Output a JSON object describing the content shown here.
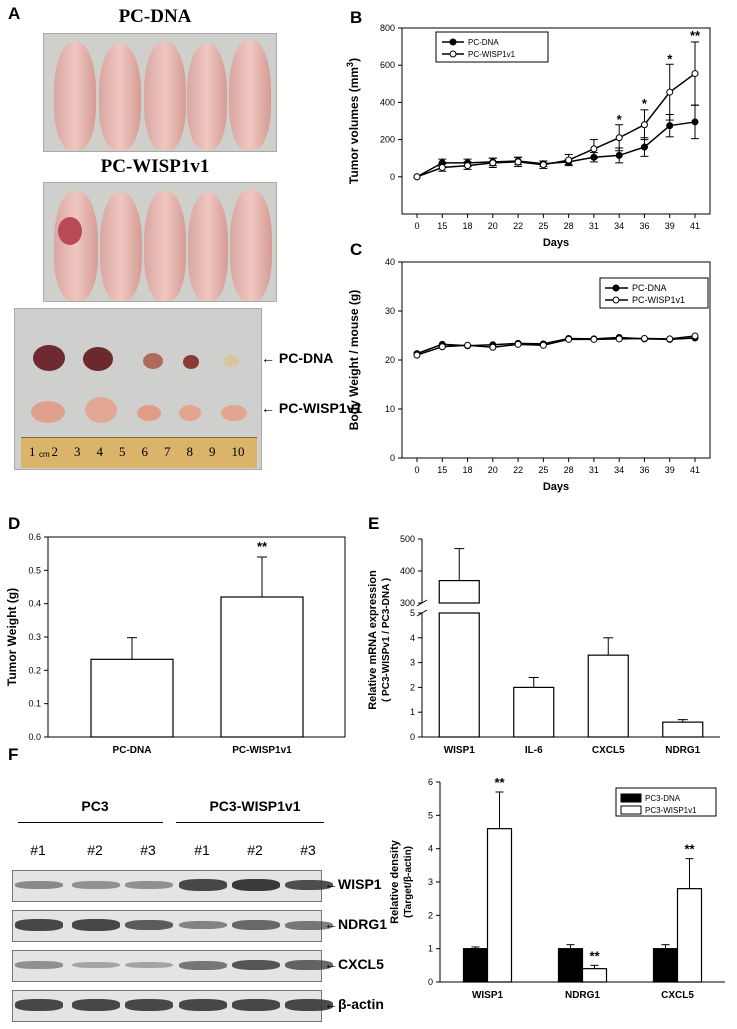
{
  "panels": {
    "A": "A",
    "B": "B",
    "C": "C",
    "D": "D",
    "E": "E",
    "F": "F"
  },
  "panel_a": {
    "label_top": "PC-DNA",
    "label_mid": "PC-WISP1v1",
    "arrow_dna": "← PC-DNA",
    "arrow_wisp": "← PC-WISP1v1",
    "ruler_marks": [
      "1",
      "2",
      "3",
      "4",
      "5",
      "6",
      "7",
      "8",
      "9",
      "10"
    ],
    "ruler_unit": "cm"
  },
  "chart_data": [
    {
      "id": "B",
      "type": "line",
      "x": [
        "0",
        "15",
        "18",
        "20",
        "22",
        "25",
        "28",
        "31",
        "34",
        "36",
        "39",
        "41"
      ],
      "series": [
        {
          "name": "PC-DNA",
          "marker": "filled",
          "values": [
            0,
            75,
            75,
            80,
            85,
            70,
            80,
            105,
            115,
            160,
            275,
            295
          ],
          "errors": [
            0,
            20,
            20,
            20,
            20,
            15,
            15,
            25,
            40,
            50,
            60,
            90
          ]
        },
        {
          "name": "PC-WISP1v1",
          "marker": "open",
          "values": [
            0,
            50,
            60,
            75,
            80,
            65,
            90,
            150,
            210,
            280,
            455,
            555
          ],
          "errors": [
            0,
            20,
            20,
            25,
            25,
            20,
            30,
            50,
            70,
            80,
            150,
            170
          ]
        }
      ],
      "significance": [
        {
          "x": "34",
          "label": "*",
          "y": 285
        },
        {
          "x": "36",
          "label": "*",
          "y": 370
        },
        {
          "x": "39",
          "label": "*",
          "y": 610
        },
        {
          "x": "41",
          "label": "**",
          "y": 735
        }
      ],
      "xlabel": "Days",
      "ylabel": "Tumor volumes (mm3)",
      "ylabel_main": "Tumor volumes (mm",
      "ylabel_sup": "3",
      "ylabel_end": ")",
      "ylim": [
        -200,
        800
      ],
      "yticks": [
        0,
        200,
        400,
        600,
        800
      ],
      "legend": "top-left"
    },
    {
      "id": "C",
      "type": "line",
      "x": [
        "0",
        "15",
        "18",
        "20",
        "22",
        "25",
        "28",
        "31",
        "34",
        "36",
        "39",
        "41"
      ],
      "series": [
        {
          "name": "PC-DNA",
          "marker": "filled",
          "values": [
            21.3,
            23.2,
            22.9,
            23.1,
            23.4,
            23.3,
            24.4,
            24.3,
            24.6,
            24.3,
            24.2,
            24.5
          ]
        },
        {
          "name": "PC-WISP1v1",
          "marker": "open",
          "values": [
            21.0,
            22.7,
            23.0,
            22.6,
            23.2,
            23.0,
            24.2,
            24.2,
            24.3,
            24.4,
            24.3,
            24.9
          ]
        }
      ],
      "xlabel": "Days",
      "ylabel": "Body Weight / mouse (g)",
      "ylim": [
        0,
        40
      ],
      "yticks": [
        0,
        10,
        20,
        30,
        40
      ],
      "legend": "top-right"
    },
    {
      "id": "D",
      "type": "bar",
      "categories": [
        "PC-DNA",
        "PC-WISP1v1"
      ],
      "values": [
        0.233,
        0.42
      ],
      "errors": [
        0.065,
        0.12
      ],
      "significance": [
        {
          "category": "PC-WISP1v1",
          "label": "**"
        }
      ],
      "ylabel": "Tumor Weight (g)",
      "ylim": [
        0,
        0.6
      ],
      "yticks": [
        "0.0",
        "0.1",
        "0.2",
        "0.3",
        "0.4",
        "0.5",
        "0.6"
      ]
    },
    {
      "id": "E",
      "type": "bar",
      "categories": [
        "WISP1",
        "IL-6",
        "CXCL5",
        "NDRG1"
      ],
      "values": [
        370,
        2.0,
        3.3,
        0.6
      ],
      "errors": [
        100,
        0.4,
        0.7,
        0.1
      ],
      "ylabel_line1": "Relative mRNA expression",
      "ylabel_line2": "( PC3-WISPv1 / PC3-DNA )",
      "yticks_lower": [
        "0",
        "1",
        "2",
        "3",
        "4",
        "5"
      ],
      "yticks_upper": [
        "300",
        "400",
        "500"
      ],
      "axis_break": [
        5,
        300
      ]
    },
    {
      "id": "F",
      "type": "bar",
      "categories": [
        "WISP1",
        "NDRG1",
        "CXCL5"
      ],
      "series": [
        {
          "name": "PC3-DNA",
          "values": [
            1.0,
            1.0,
            1.0
          ],
          "errors": [
            0.05,
            0.12,
            0.12
          ]
        },
        {
          "name": "PC3-WISP1v1",
          "values": [
            4.6,
            0.4,
            2.8
          ],
          "errors": [
            1.1,
            0.1,
            0.9
          ]
        }
      ],
      "significance": [
        {
          "category": "WISP1",
          "label": "**"
        },
        {
          "category": "NDRG1",
          "label": "**"
        },
        {
          "category": "CXCL5",
          "label": "**"
        }
      ],
      "ylabel_line1": "Relative density",
      "ylabel_line2": "(Target/β-actin)",
      "ylim": [
        0,
        6
      ],
      "yticks": [
        "0",
        "1",
        "2",
        "3",
        "4",
        "5",
        "6"
      ],
      "legend": "top-right"
    }
  ],
  "blot": {
    "group1": "PC3",
    "group2": "PC3-WISP1v1",
    "lanes": [
      "#1",
      "#2",
      "#3",
      "#1",
      "#2",
      "#3"
    ],
    "rows": [
      {
        "label": "←WISP1",
        "intensity": [
          0.35,
          0.3,
          0.3,
          0.85,
          0.95,
          0.8
        ]
      },
      {
        "label": "←NDRG1",
        "intensity": [
          0.85,
          0.85,
          0.7,
          0.4,
          0.6,
          0.5
        ]
      },
      {
        "label": "←CXCL5",
        "intensity": [
          0.3,
          0.15,
          0.15,
          0.5,
          0.75,
          0.65
        ]
      },
      {
        "label": "←β-actin",
        "intensity": [
          0.85,
          0.85,
          0.85,
          0.85,
          0.85,
          0.85
        ]
      }
    ]
  }
}
